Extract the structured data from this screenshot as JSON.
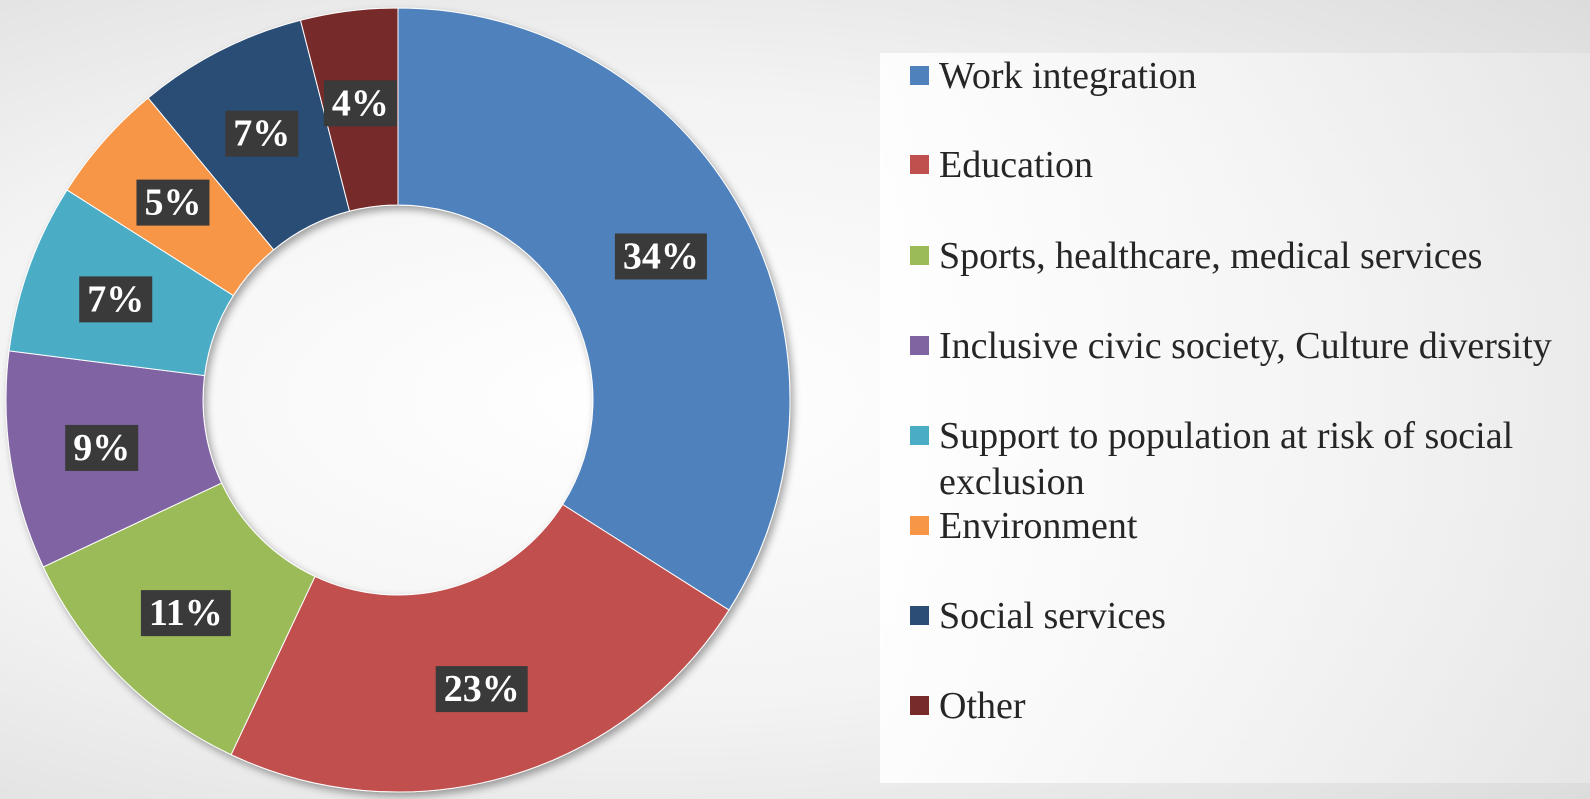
{
  "chart_data": {
    "type": "pie",
    "variant": "donut",
    "title": "",
    "legend_position": "right",
    "slices": [
      {
        "name": "Work integration",
        "value": 34,
        "label": "34%",
        "color": "#4F81BD"
      },
      {
        "name": "Education",
        "value": 23,
        "label": "23%",
        "color": "#C0504D"
      },
      {
        "name": "Sports, healthcare, medical services",
        "value": 11,
        "label": "11%",
        "color": "#9BBB59"
      },
      {
        "name": "Inclusive civic society, Culture diversity",
        "value": 9,
        "label": "9%",
        "color": "#8064A2"
      },
      {
        "name": "Support to population at risk of social exclusion",
        "value": 7,
        "label": "7%",
        "color": "#4BACC6"
      },
      {
        "name": "Environment",
        "value": 5,
        "label": "5%",
        "color": "#F79646"
      },
      {
        "name": "Social services",
        "value": 7,
        "label": "7%",
        "color": "#2C4D75"
      },
      {
        "name": "Other",
        "value": 4,
        "label": "4%",
        "color": "#772C2A"
      }
    ]
  }
}
